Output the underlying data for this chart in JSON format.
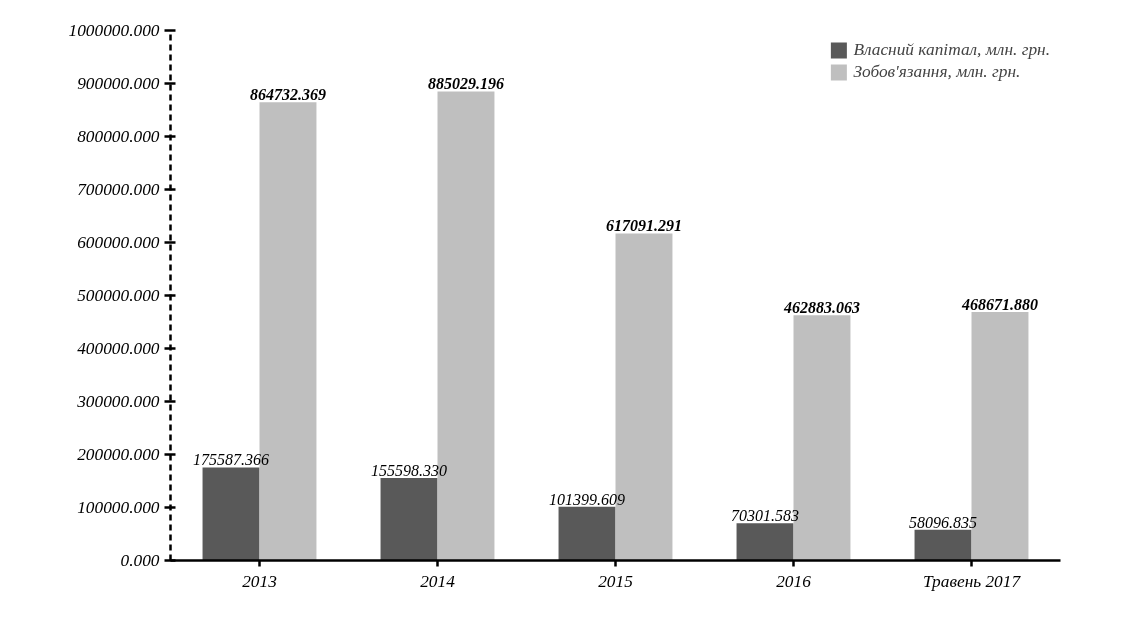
{
  "chart_data": {
    "type": "bar",
    "categories": [
      "2013",
      "2014",
      "2015",
      "2016",
      "Травень 2017"
    ],
    "series": [
      {
        "name": "Власний капітал, млн. грн.",
        "color": "#595959",
        "values": [
          175587.366,
          155598.33,
          101399.609,
          70301.583,
          58096.835
        ],
        "value_labels": [
          "175587.366",
          "155598.330",
          "101399.609",
          "70301.583",
          "58096.835"
        ]
      },
      {
        "name": "Зобов'язання, млн. грн.",
        "color": "#bfbfbf",
        "values": [
          864732.369,
          885029.196,
          617091.291,
          462883.063,
          468671.88
        ],
        "value_labels": [
          "864732.369",
          "885029.196",
          "617091.291",
          "462883.063",
          "468671.880"
        ]
      }
    ],
    "ylim": [
      0,
      1000000
    ],
    "yticks": [
      {
        "value": 0,
        "label": "0.000"
      },
      {
        "value": 100000,
        "label": "100000.000"
      },
      {
        "value": 200000,
        "label": "200000.000"
      },
      {
        "value": 300000,
        "label": "300000.000"
      },
      {
        "value": 400000,
        "label": "400000.000"
      },
      {
        "value": 500000,
        "label": "500000.000"
      },
      {
        "value": 600000,
        "label": "600000.000"
      },
      {
        "value": 700000,
        "label": "700000.000"
      },
      {
        "value": 800000,
        "label": "800000.000"
      },
      {
        "value": 900000,
        "label": "900000.000"
      },
      {
        "value": 1000000,
        "label": "1000000.000"
      }
    ],
    "grid": false,
    "legend": "top right"
  }
}
